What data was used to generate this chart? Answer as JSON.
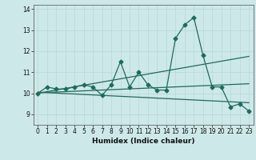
{
  "title": "",
  "xlabel": "Humidex (Indice chaleur)",
  "xlim": [
    -0.5,
    23.5
  ],
  "ylim": [
    8.5,
    14.2
  ],
  "yticks": [
    9,
    10,
    11,
    12,
    13,
    14
  ],
  "xticks": [
    0,
    1,
    2,
    3,
    4,
    5,
    6,
    7,
    8,
    9,
    10,
    11,
    12,
    13,
    14,
    15,
    16,
    17,
    18,
    19,
    20,
    21,
    22,
    23
  ],
  "bg_color": "#cde8e8",
  "line_color": "#1e6b5e",
  "line1_x": [
    0,
    1,
    2,
    3,
    4,
    5,
    6,
    7,
    8,
    9,
    10,
    11,
    12,
    13,
    14,
    15,
    16,
    17,
    18,
    19,
    20,
    21,
    22,
    23
  ],
  "line1_y": [
    10.0,
    10.3,
    10.2,
    10.2,
    10.3,
    10.4,
    10.3,
    9.9,
    10.4,
    11.5,
    10.3,
    11.0,
    10.4,
    10.15,
    10.15,
    12.6,
    13.25,
    13.6,
    11.8,
    10.3,
    10.3,
    9.35,
    9.5,
    9.15
  ],
  "line2_x": [
    0,
    23
  ],
  "line2_y": [
    10.0,
    11.75
  ],
  "line3_x": [
    0,
    23
  ],
  "line3_y": [
    10.05,
    9.55
  ],
  "line4_x": [
    0,
    23
  ],
  "line4_y": [
    10.02,
    10.45
  ],
  "grid_color": "#b8d8d8",
  "xlabel_fontsize": 6.5,
  "tick_fontsize": 5.5
}
